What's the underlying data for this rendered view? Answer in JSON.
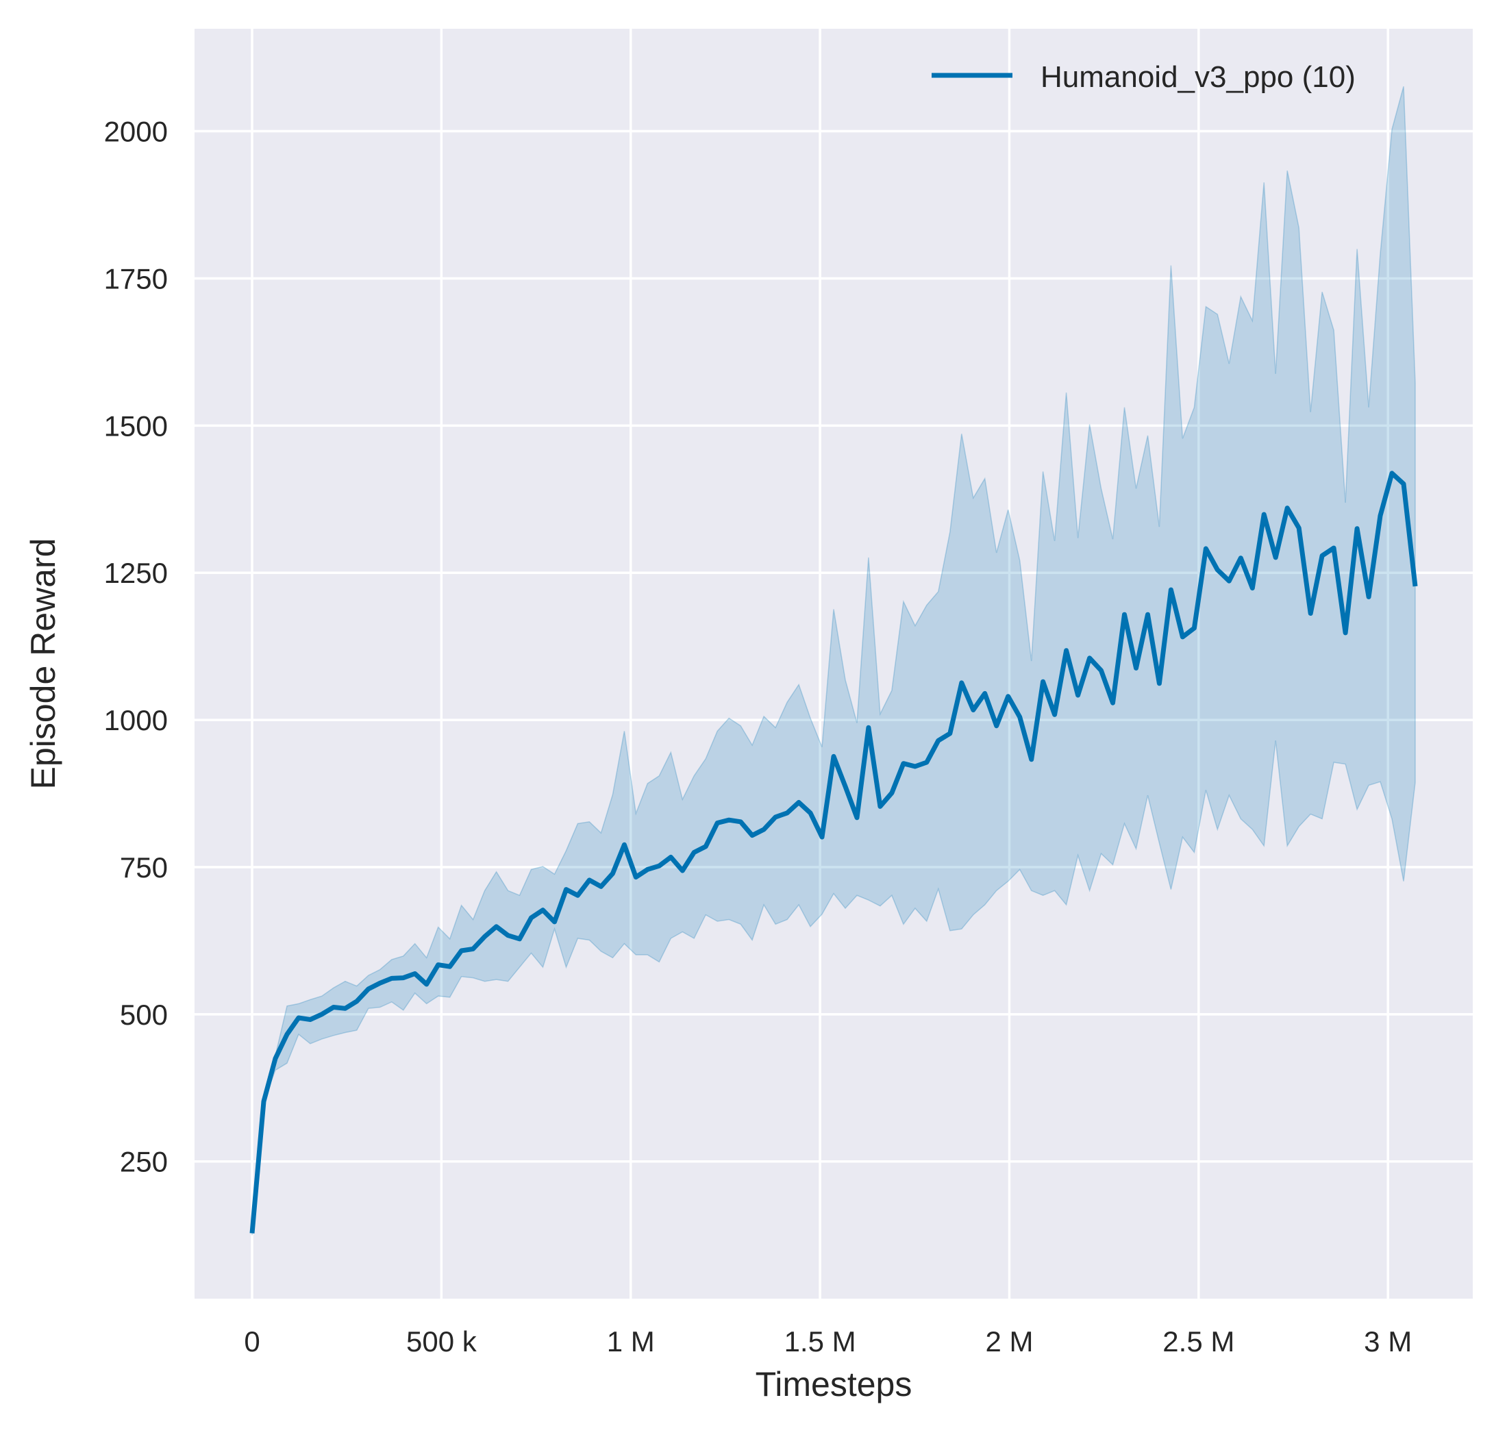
{
  "chart_data": {
    "type": "line",
    "title": "",
    "xlabel": "Timesteps",
    "ylabel": "Episode Reward",
    "xlim": [
      -152000,
      3224000
    ],
    "ylim": [
      17,
      2174
    ],
    "grid": true,
    "legend_placement": "top-right",
    "colors": {
      "background": "#EAEAF2",
      "grid": "#FFFFFF",
      "series": "#0072B2"
    },
    "x_ticks": [
      {
        "value": 0,
        "label": "0"
      },
      {
        "value": 500000,
        "label": "500 k"
      },
      {
        "value": 1000000,
        "label": "1 M"
      },
      {
        "value": 1500000,
        "label": "1.5 M"
      },
      {
        "value": 2000000,
        "label": "2 M"
      },
      {
        "value": 2500000,
        "label": "2.5 M"
      },
      {
        "value": 3000000,
        "label": "3 M"
      }
    ],
    "y_ticks": [
      {
        "value": 250,
        "label": "250"
      },
      {
        "value": 500,
        "label": "500"
      },
      {
        "value": 750,
        "label": "750"
      },
      {
        "value": 1000,
        "label": "1000"
      },
      {
        "value": 1250,
        "label": "1250"
      },
      {
        "value": 1500,
        "label": "1500"
      },
      {
        "value": 1750,
        "label": "1750"
      },
      {
        "value": 2000,
        "label": "2000"
      }
    ],
    "x_step": 30720,
    "series": [
      {
        "name": "Humanoid_v3_ppo (10)",
        "values": [
          128,
          352,
          425,
          466,
          494,
          491,
          500,
          512,
          510,
          522,
          543,
          553,
          561,
          562,
          569,
          551,
          584,
          581,
          608,
          611,
          632,
          649,
          634,
          628,
          664,
          677,
          657,
          712,
          702,
          728,
          717,
          739,
          788,
          733,
          746,
          752,
          767,
          744,
          775,
          785,
          825,
          830,
          827,
          804,
          814,
          835,
          842,
          860,
          842,
          801,
          938,
          887,
          834,
          987,
          853,
          876,
          926,
          921,
          928,
          965,
          977,
          1063,
          1017,
          1045,
          990,
          1040,
          1005,
          933,
          1065,
          1009,
          1118,
          1042,
          1105,
          1084,
          1029,
          1179,
          1088,
          1179,
          1062,
          1221,
          1141,
          1156,
          1291,
          1255,
          1236,
          1275,
          1224,
          1349,
          1276,
          1360,
          1326,
          1181,
          1279,
          1292,
          1148,
          1325,
          1209,
          1347,
          1419,
          1401,
          1227
        ],
        "upper": [
          128,
          352,
          430,
          514,
          518,
          525,
          531,
          545,
          556,
          548,
          566,
          576,
          593,
          599,
          620,
          596,
          648,
          628,
          685,
          661,
          710,
          742,
          710,
          702,
          746,
          751,
          738,
          778,
          824,
          827,
          808,
          873,
          981,
          841,
          892,
          905,
          945,
          865,
          905,
          934,
          981,
          1003,
          990,
          957,
          1006,
          987,
          1030,
          1060,
          1003,
          954,
          1188,
          1068,
          995,
          1276,
          1010,
          1050,
          1201,
          1160,
          1195,
          1218,
          1319,
          1486,
          1377,
          1410,
          1284,
          1357,
          1271,
          1100,
          1422,
          1304,
          1556,
          1309,
          1502,
          1393,
          1307,
          1531,
          1393,
          1483,
          1328,
          1772,
          1478,
          1531,
          1702,
          1689,
          1605,
          1719,
          1678,
          1913,
          1588,
          1933,
          1836,
          1523,
          1727,
          1662,
          1369,
          1800,
          1531,
          1792,
          2003,
          2076,
          1572
        ],
        "lower": [
          125,
          352,
          405,
          417,
          466,
          450,
          458,
          464,
          469,
          473,
          510,
          512,
          521,
          507,
          536,
          518,
          531,
          529,
          564,
          562,
          556,
          559,
          556,
          580,
          604,
          580,
          645,
          580,
          629,
          626,
          607,
          596,
          620,
          601,
          601,
          589,
          629,
          640,
          629,
          669,
          658,
          661,
          653,
          626,
          686,
          653,
          661,
          686,
          649,
          670,
          705,
          680,
          702,
          694,
          684,
          702,
          653,
          680,
          658,
          713,
          642,
          645,
          669,
          686,
          710,
          726,
          746,
          710,
          702,
          710,
          686,
          770,
          710,
          773,
          754,
          824,
          781,
          872,
          791,
          712,
          801,
          775,
          881,
          814,
          872,
          832,
          814,
          786,
          965,
          786,
          819,
          840,
          832,
          928,
          925,
          848,
          889,
          895,
          832,
          726,
          894
        ]
      }
    ]
  }
}
